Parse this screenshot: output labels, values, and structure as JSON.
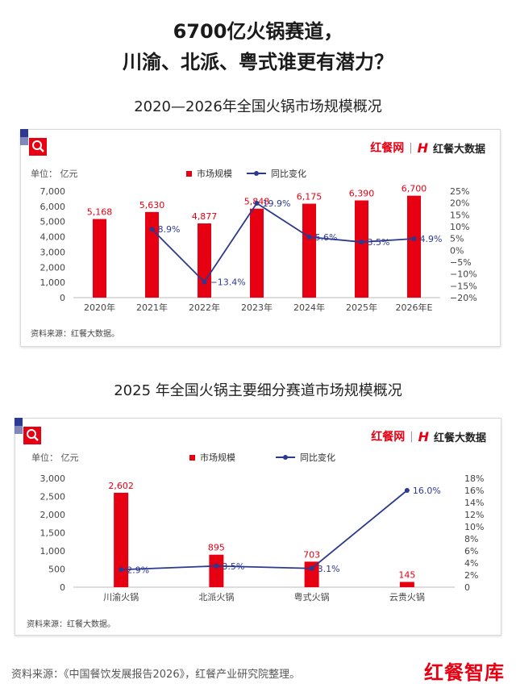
{
  "headline": {
    "line1": "6700亿火锅赛道，",
    "line2": "川渝、北派、粤式谁更有潜力？"
  },
  "brand": {
    "name1": "红餐网",
    "separator": "|",
    "logo_mark": "H",
    "name2": "红餐大数据"
  },
  "colors": {
    "bar": "#e60012",
    "line": "#2b3990"
  },
  "chart_data": [
    {
      "type": "bar",
      "title": "2020—2026年全国火锅市场规模概况",
      "unit_label": "单位：  亿元",
      "legend": [
        "市场规模",
        "同比变化"
      ],
      "categories": [
        "2020年",
        "2021年",
        "2022年",
        "2023年",
        "2024年",
        "2025年",
        "2026年E"
      ],
      "series": [
        {
          "name": "市场规模",
          "type": "bar",
          "values": [
            5168,
            5630,
            4877,
            5848,
            6175,
            6390,
            6700
          ],
          "labels": [
            "5,168",
            "5,630",
            "4,877",
            "5,848",
            "6,175",
            "6,390",
            "6,700"
          ]
        },
        {
          "name": "同比变化",
          "type": "line",
          "values": [
            null,
            8.9,
            -13.4,
            19.9,
            5.6,
            3.5,
            4.9
          ],
          "labels": [
            "",
            "8.9%",
            "−13.4%",
            "19.9%",
            "5.6%",
            "3.5%",
            "4.9%"
          ]
        }
      ],
      "ylim": [
        0,
        7000
      ],
      "y_ticks": [
        "7,000",
        "6,000",
        "5,000",
        "4,000",
        "3,000",
        "2,000",
        "1,000",
        "0"
      ],
      "y2lim": [
        -20,
        25
      ],
      "y2_ticks": [
        "25%",
        "20%",
        "15%",
        "10%",
        "5%",
        "0%",
        "−5%",
        "−10%",
        "−15%",
        "−20%"
      ],
      "source": "资料来源：红餐大数据。"
    },
    {
      "type": "bar",
      "title": "2025 年全国火锅主要细分赛道市场规模概况",
      "unit_label": "单位：  亿元",
      "legend": [
        "市场规模",
        "同比变化"
      ],
      "categories": [
        "川渝火锅",
        "北派火锅",
        "粤式火锅",
        "云贵火锅"
      ],
      "series": [
        {
          "name": "市场规模",
          "type": "bar",
          "values": [
            2602,
            895,
            703,
            145
          ],
          "labels": [
            "2,602",
            "895",
            "703",
            "145"
          ]
        },
        {
          "name": "同比变化",
          "type": "line",
          "values": [
            2.9,
            3.5,
            3.1,
            16.0
          ],
          "labels": [
            "2.9%",
            "3.5%",
            "3.1%",
            "16.0%"
          ]
        }
      ],
      "ylim": [
        0,
        3000
      ],
      "y_ticks": [
        "3,000",
        "2,500",
        "2,000",
        "1,500",
        "1,000",
        "500",
        "0"
      ],
      "y2lim": [
        0,
        18
      ],
      "y2_ticks": [
        "18%",
        "16%",
        "14%",
        "12%",
        "10%",
        "8%",
        "6%",
        "4%",
        "2%",
        "0"
      ],
      "source": "资料来源：红餐大数据。"
    }
  ],
  "footer": {
    "source": "资料来源：《中国餐饮发展报告2026》，红餐产业研究院整理。",
    "logo": "红餐智库"
  }
}
